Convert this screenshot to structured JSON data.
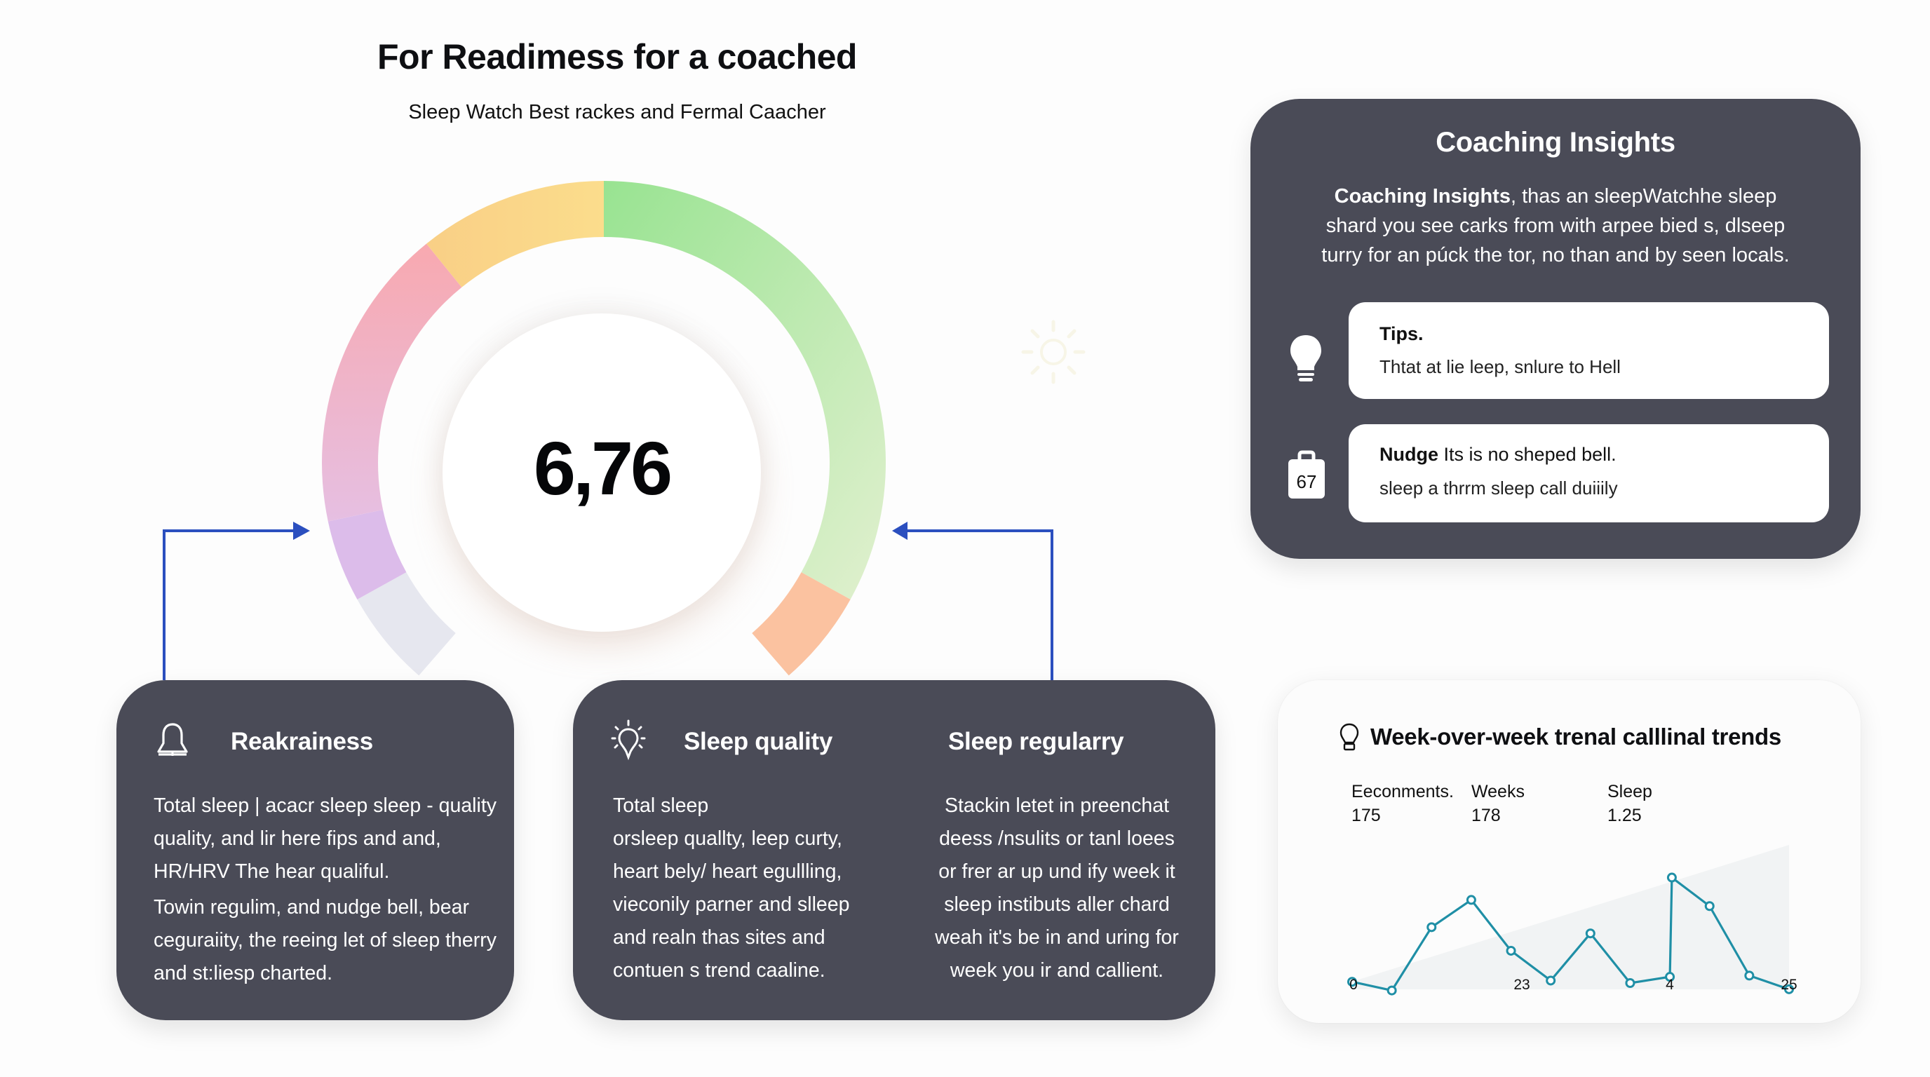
{
  "header": {
    "title": "For Readimess for a coached",
    "subtitle": "Sleep Watch Best rackes and Fermal Caacher"
  },
  "gauge": {
    "value": "6,76",
    "segments": [
      {
        "name": "grey",
        "start": -139,
        "end": -119,
        "color": "#e6e7ef"
      },
      {
        "name": "purple",
        "start": -119,
        "end": -102,
        "color": "#dcbcea"
      },
      {
        "name": "pink",
        "start": -102,
        "end": -39,
        "color": "#f7acb9"
      },
      {
        "name": "yellow",
        "start": -39,
        "end": 0,
        "color": "#fbd98a"
      },
      {
        "name": "green",
        "start": 0,
        "end": 119,
        "color": "#b7e8a8"
      },
      {
        "name": "peach",
        "start": 119,
        "end": 139,
        "color": "#fbc2a0"
      }
    ]
  },
  "coaching": {
    "title": "Coaching Insights",
    "intro_bold": "Coaching Insights",
    "intro_rest_1": ", thas an sleepWatchhe sleep",
    "intro_line_2": "shard you see carks from with arpee bied s, dlseep",
    "intro_line_3": "turry for an púck the tor, no than and by seen locals.",
    "tips": {
      "label": "Tips.",
      "text": "Thtat at lie leep, snlure to Hell"
    },
    "nudge": {
      "label": "Nudge",
      "text_1": " Its is no sheped bell.",
      "text_2": "sleep a thrrm sleep call duiiily",
      "badge": "67"
    }
  },
  "readiness": {
    "title": "Reakrainess",
    "para_1": "Total sleep | acacr sleep sleep - quality quality, and lir here fips and and, HR/HRV The hear qualiful.",
    "para_2": "Towin regulim, and nudge bell, bear ceguraiity, the reeing let of sleep therry and st:liesp charted."
  },
  "sleep_quality": {
    "title": "Sleep quality",
    "lines": [
      "Total sleep",
      "orsleep quallty, leep curty,",
      "heart bely/ heart egullling,",
      "vieconily parner and slleep",
      "and realn thas sites and",
      "contuen s trend caaline."
    ]
  },
  "sleep_regularity": {
    "title": "Sleep regularry",
    "lines": [
      "Stackin letet in preenchat",
      "deess /nsulits or tanl loees",
      "or frer ar up und ify week it",
      "sleep instibuts aller chard",
      "weah it's be in and uring for",
      "week you ir and callient."
    ]
  },
  "trends": {
    "title": "Week-over-week trenal calllinal trends",
    "stats": [
      {
        "label": "Eeconments.",
        "value": "175"
      },
      {
        "label": "Weeks",
        "value": "178"
      },
      {
        "label": "Sleep",
        "value": "1.25"
      }
    ],
    "line_color": "#1f8fa6"
  },
  "chart_data": {
    "type": "line",
    "title": "Week-over-week trenal calllinal trends",
    "xlabel": "",
    "ylabel": "",
    "x_tick_labels": [
      "0",
      "23",
      "4",
      "25"
    ],
    "series": [
      {
        "name": "trend",
        "x": [
          0,
          1,
          2,
          3,
          4,
          5,
          6,
          7,
          8,
          8.05,
          9,
          10,
          11
        ],
        "values": [
          1.4,
          0.7,
          5.8,
          8.0,
          3.9,
          1.5,
          5.3,
          1.3,
          1.8,
          9.8,
          7.5,
          1.9,
          0.8
        ]
      }
    ],
    "ylim": [
      0,
      10
    ],
    "grid": false,
    "legend": "none"
  },
  "colors": {
    "card_dark": "#4a4b57",
    "arrow": "#2b4fbf",
    "chart_line": "#1f8fa6"
  }
}
